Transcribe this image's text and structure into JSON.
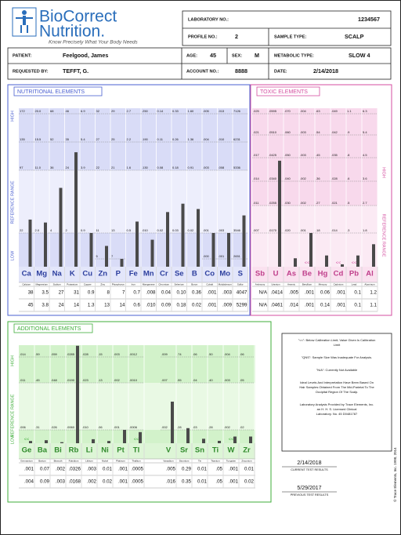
{
  "header": {
    "brand_line1": "BioCorrect",
    "brand_line2": "Nutrition.",
    "tagline": "Know Precisely What Your Body Needs"
  },
  "info": [
    {
      "label": "LABORATORY NO.:",
      "value": "1234567"
    },
    {
      "label": "PROFILE NO.:",
      "value": "2"
    },
    {
      "label": "SAMPLE TYPE:",
      "value": "SCALP"
    },
    {
      "label": "PATIENT:",
      "value": "Feelgood, James"
    },
    {
      "label": "AGE:",
      "value": "45"
    },
    {
      "label": "SEX:",
      "value": "M"
    },
    {
      "label": "METABOLIC TYPE:",
      "value": "SLOW 4"
    },
    {
      "label": "REQUESTED BY:",
      "value": "TEFFT, G."
    },
    {
      "label": "ACCOUNT NO.:",
      "value": "8888"
    },
    {
      "label": "DATE:",
      "value": "2/14/2018"
    }
  ],
  "nutritional": {
    "title": "NUTRITIONAL ELEMENTS",
    "axis": [
      "HIGH",
      "REFERENCE RANGE",
      "LOW"
    ],
    "elements": [
      {
        "symbol": "Ca",
        "name": "Calcium",
        "scale": [
          "172",
          "135",
          "97",
          "22",
          null
        ],
        "current": "38",
        "previous": "45"
      },
      {
        "symbol": "Mg",
        "name": "Magnesium",
        "scale": [
          "20.0",
          "15.5",
          "11.0",
          "2.0",
          null
        ],
        "current": "3.5",
        "previous": "3.8"
      },
      {
        "symbol": "Na",
        "name": "Sodium",
        "scale": [
          "68",
          "52",
          "36",
          "4",
          null
        ],
        "current": "27",
        "previous": "24"
      },
      {
        "symbol": "K",
        "name": "Potassium",
        "scale": [
          "46",
          "35",
          "24",
          "2",
          null
        ],
        "current": "31",
        "previous": "14"
      },
      {
        "symbol": "Cu",
        "name": "Copper",
        "scale": [
          "6.9",
          "5.4",
          "3.9",
          "0.9",
          null
        ],
        "current": "0.9",
        "previous": "1.3"
      },
      {
        "symbol": "Zn",
        "name": "Zinc",
        "scale": [
          "32",
          "27",
          "22",
          "11",
          "5"
        ],
        "current": "8",
        "previous": "13"
      },
      {
        "symbol": "P",
        "name": "Phosphorus",
        "scale": [
          "29",
          "25",
          "21",
          "13",
          "7"
        ],
        "current": "7",
        "previous": "14"
      },
      {
        "symbol": "Fe",
        "name": "Iron",
        "scale": [
          "2.7",
          "2.2",
          "1.6",
          "0.5",
          null
        ],
        "current": "0.7",
        "previous": "0.6"
      },
      {
        "symbol": "Mn",
        "name": "Manganese",
        "scale": [
          ".250",
          ".190",
          ".130",
          ".010",
          null
        ],
        "current": ".008",
        "previous": ".010"
      },
      {
        "symbol": "Cr",
        "name": "Chromium",
        "scale": [
          "0.14",
          "0.11",
          "0.08",
          "0.02",
          null
        ],
        "current": "0.04",
        "previous": "0.09"
      },
      {
        "symbol": "Se",
        "name": "Selenium",
        "scale": [
          "0.33",
          "0.26",
          "0.18",
          "0.03",
          null
        ],
        "current": "0.10",
        "previous": "0.18"
      },
      {
        "symbol": "B",
        "name": "Boron",
        "scale": [
          "1.60",
          "1.36",
          "0.91",
          "0.02",
          null
        ],
        "current": "0.36",
        "previous": "0.02"
      },
      {
        "symbol": "Co",
        "name": "Cobalt",
        "scale": [
          ".005",
          ".004",
          ".003",
          ".001",
          ".000"
        ],
        "current": ".001",
        "previous": ".001"
      },
      {
        "symbol": "Mo",
        "name": "Molybdenum",
        "scale": [
          ".013",
          ".010",
          ".008",
          ".003",
          ".001"
        ],
        "current": ".003",
        "previous": ".009"
      },
      {
        "symbol": "S",
        "name": "Sulfur",
        "scale": [
          "7126",
          "6231",
          "5336",
          "3546",
          "2651"
        ],
        "current": "4047",
        "previous": "5299"
      }
    ]
  },
  "toxic": {
    "title": "TOXIC ELEMENTS",
    "axis": [
      "HIGH",
      "REFERENCE RANGE"
    ],
    "elements": [
      {
        "symbol": "Sb",
        "name": "Antimony",
        "scale": [
          ".025",
          ".021",
          ".017",
          ".014",
          ".011",
          ".007"
        ],
        "current": "N/A",
        "previous": "N/A"
      },
      {
        "symbol": "U",
        "name": "Uranium",
        "scale": [
          ".0595",
          ".0510",
          ".0425",
          ".0340",
          ".0255",
          ".0170"
        ],
        "current": ".0414",
        "previous": ".0461"
      },
      {
        "symbol": "As",
        "name": "Arsenic",
        "scale": [
          ".070",
          ".060",
          ".050",
          ".040",
          ".030",
          ".020"
        ],
        "current": ".005",
        "previous": ".014"
      },
      {
        "symbol": "Be",
        "name": "Beryllium",
        "scale": [
          ".004",
          ".003",
          ".003",
          ".002",
          ".002",
          ".001"
        ],
        "current": ".001",
        "previous": ".001",
        "flag": "<<"
      },
      {
        "symbol": "Hg",
        "name": "Mercury",
        "scale": [
          ".63",
          ".54",
          ".45",
          ".36",
          ".27",
          ".18"
        ],
        "current": "0.06",
        "previous": "0.14"
      },
      {
        "symbol": "Cd",
        "name": "Cadmium",
        "scale": [
          ".049",
          ".042",
          ".035",
          ".028",
          ".021",
          ".014"
        ],
        "current": ".001",
        "previous": ".001",
        "flag": "<<"
      },
      {
        "symbol": "Pb",
        "name": "Lead",
        "scale": [
          "1.1",
          ".9",
          ".8",
          ".6",
          ".5",
          ".3"
        ],
        "current": "0.1",
        "previous": "0.1",
        "flag": "<<"
      },
      {
        "symbol": "Al",
        "name": "Aluminum",
        "scale": [
          "6.3",
          "5.4",
          "4.5",
          "3.6",
          "2.7",
          "1.8"
        ],
        "current": "1.2",
        "previous": "1.1"
      }
    ]
  },
  "additional": {
    "title": "ADDITIONAL ELEMENTS",
    "axis": [
      "HIGH",
      "REFERENCE RANGE",
      "LOW"
    ],
    "elements": [
      {
        "symbol": "Ge",
        "name": "Germanium",
        "scale": [
          ".014",
          ".011",
          ".006"
        ],
        "current": ".001",
        "previous": ".004",
        "flag": "<<"
      },
      {
        "symbol": "Ba",
        "name": "Barium",
        "scale": [
          ".59",
          ".45",
          ".31"
        ],
        "current": "0.07",
        "previous": "0.09"
      },
      {
        "symbol": "Bi",
        "name": "Bismuth",
        "scale": [
          ".059",
          ".048",
          ".026"
        ],
        "current": ".002",
        "previous": ".003"
      },
      {
        "symbol": "Rb",
        "name": "Rubidium",
        "scale": [
          ".0285",
          ".0190",
          ".0060"
        ],
        "current": ".0326",
        "previous": ".0168"
      },
      {
        "symbol": "Li",
        "name": "Lithium",
        "scale": [
          ".028",
          ".023",
          ".010"
        ],
        "current": ".003",
        "previous": ".002"
      },
      {
        "symbol": "Ni",
        "name": "Nickel",
        "scale": [
          ".15",
          ".13",
          ".06"
        ],
        "current": "0.01",
        "previous": "0.02"
      },
      {
        "symbol": "Pt",
        "name": "Platinum",
        "scale": [
          ".003",
          ".002",
          ".001"
        ],
        "current": ".001",
        "previous": ".001"
      },
      {
        "symbol": "Tl",
        "name": "Thallium",
        "scale": [
          ".0012",
          ".0010",
          ".0006"
        ],
        "current": ".0005",
        "previous": ".0005",
        "flag": "<<"
      },
      {
        "symbol": "V",
        "name": "Vanadium",
        "scale": [
          ".009",
          ".007",
          ".002"
        ],
        "current": ".005",
        "previous": ".016"
      },
      {
        "symbol": "Sr",
        "name": "Strontium",
        "scale": [
          ".74",
          ".55",
          ".28"
        ],
        "current": "0.29",
        "previous": "0.35"
      },
      {
        "symbol": "Sn",
        "name": "Tin",
        "scale": [
          ".06",
          ".04",
          ".03"
        ],
        "current": "0.01",
        "previous": "0.01"
      },
      {
        "symbol": "Ti",
        "name": "Titanium",
        "scale": [
          ".50",
          ".40",
          ".28"
        ],
        "current": ".05",
        "previous": ".05"
      },
      {
        "symbol": "W",
        "name": "Tungsten",
        "scale": [
          ".004",
          ".003",
          ".002"
        ],
        "current": ".001",
        "previous": ".001",
        "flag": "<<"
      },
      {
        "symbol": "Zr",
        "name": "Zirconium",
        "scale": [
          ".06",
          ".05",
          ".02"
        ],
        "current": "0.01",
        "previous": "0.02"
      }
    ]
  },
  "notes": [
    [
      "\"<<\": Below Calibration Limit; Value Given Is Calibration",
      "Limit"
    ],
    [
      "\"QNS\": Sample Size Was Inadequate For Analysis."
    ],
    [
      "\"N/A\": Currently Not Available"
    ],
    [
      "Ideal Levels And Interpretation Have Been Based On",
      "Hair Samples Obtained From The Mid-Parietal To The",
      "Occipital Region Of The Scalp."
    ],
    [
      "Laboratory Analysis Provided by Trace Elements, Inc.",
      "an H. H. S. Licensed Clinical",
      "Laboratory. No. 45 D0481787"
    ]
  ],
  "dates": {
    "current": "2/14/2018",
    "current_label": "CURRENT TEST RESULTS",
    "previous": "5/29/2017",
    "previous_label": "PREVIOUS TEST RESULTS"
  },
  "copyright": "© Trace Elements, Inc. 1998, 2014"
}
